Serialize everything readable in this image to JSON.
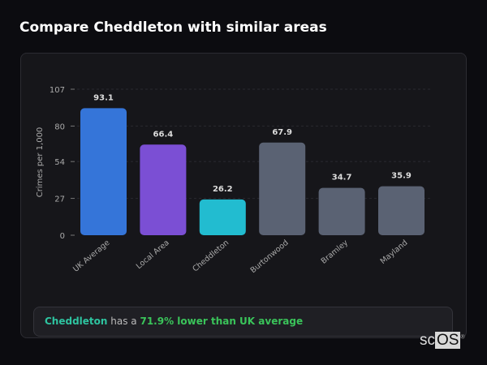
{
  "title": "Compare Cheddleton with similar areas",
  "chart_data": {
    "type": "bar",
    "categories": [
      "UK Average",
      "Local Area",
      "Cheddleton",
      "Burtonwood",
      "Bramley",
      "Mayland"
    ],
    "values": [
      93.1,
      66.4,
      26.2,
      67.9,
      34.7,
      35.9
    ],
    "colors": [
      "#3575d9",
      "#7b4fd4",
      "#22bcd0",
      "#5a6273",
      "#5a6273",
      "#5a6273"
    ],
    "ylabel": "Crimes per 1,000",
    "xlabel": "",
    "ylim": [
      0,
      107
    ],
    "yticks": [
      0,
      27,
      54,
      80,
      107
    ],
    "grid": true
  },
  "summary": {
    "place": "Cheddleton",
    "middle": " has a ",
    "comparison": "71.9% lower than UK average"
  },
  "logo": {
    "text_a": "sc",
    "text_b": "OS",
    "mark": "®"
  }
}
